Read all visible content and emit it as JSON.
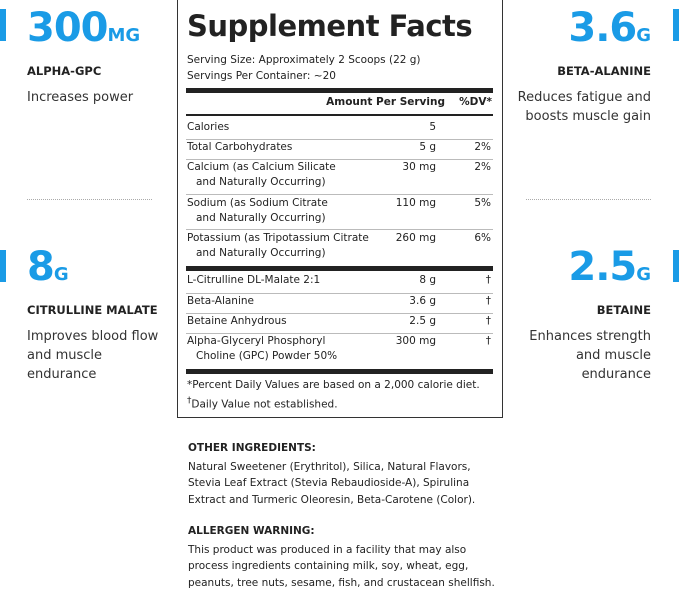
{
  "colors": {
    "accent": "#1a9be6"
  },
  "stats": [
    {
      "value": "300",
      "unit": "MG",
      "name": "ALPHA-GPC",
      "desc": "Increases power"
    },
    {
      "value": "3.6",
      "unit": "G",
      "name": "BETA-ALANINE",
      "desc": "Reduces fatigue and boosts muscle gain"
    },
    {
      "value": "8",
      "unit": "G",
      "name": "CITRULLINE MALATE",
      "desc": "Improves blood flow and muscle endurance"
    },
    {
      "value": "2.5",
      "unit": "G",
      "name": "BETAINE",
      "desc": "Enhances strength and muscle endurance"
    }
  ],
  "panel": {
    "title": "Supplement Facts",
    "serving_size": "Serving Size: Approximately 2 Scoops (22 g)",
    "servings": "Servings Per Container: ~20",
    "col_amount": "Amount Per Serving",
    "col_dv": "%DV*",
    "rows": [
      {
        "name": "Calories",
        "amount": "5",
        "dv": ""
      },
      {
        "name": "Total Carbohydrates",
        "amount": "5 g",
        "dv": "2%"
      },
      {
        "name": "Calcium (as Calcium Silicate",
        "name2": "and Naturally Occurring)",
        "amount": "30 mg",
        "dv": "2%"
      },
      {
        "name": "Sodium (as Sodium Citrate",
        "name2": "and Naturally Occurring)",
        "amount": "110 mg",
        "dv": "5%"
      },
      {
        "name": "Potassium (as Tripotassium Citrate",
        "name2": "and Naturally Occurring)",
        "amount": "260 mg",
        "dv": "6%"
      },
      {
        "name": "L-Citrulline DL-Malate 2:1",
        "amount": "8 g",
        "dv": "†"
      },
      {
        "name": "Beta-Alanine",
        "amount": "3.6 g",
        "dv": "†"
      },
      {
        "name": "Betaine Anhydrous",
        "amount": "2.5 g",
        "dv": "†"
      },
      {
        "name": "Alpha-Glyceryl Phosphoryl",
        "name2": "Choline (GPC) Powder 50%",
        "amount": "300 mg",
        "dv": "†"
      }
    ],
    "footnote1": "*Percent Daily Values are based on a 2,000 calorie diet.",
    "footnote2_mark": "†",
    "footnote2": "Daily Value not established."
  },
  "other_ingredients": {
    "heading": "OTHER INGREDIENTS:",
    "text": "Natural Sweetener (Erythritol), Silica, Natural Flavors, Stevia Leaf Extract (Stevia Rebaudioside-A), Spirulina Extract and Turmeric Oleoresin, Beta-Carotene (Color)."
  },
  "allergen": {
    "heading": "ALLERGEN WARNING:",
    "text": "This product was produced in a facility that may also process ingredients containing milk, soy, wheat, egg, peanuts, tree nuts, sesame, fish, and crustacean shellfish."
  }
}
